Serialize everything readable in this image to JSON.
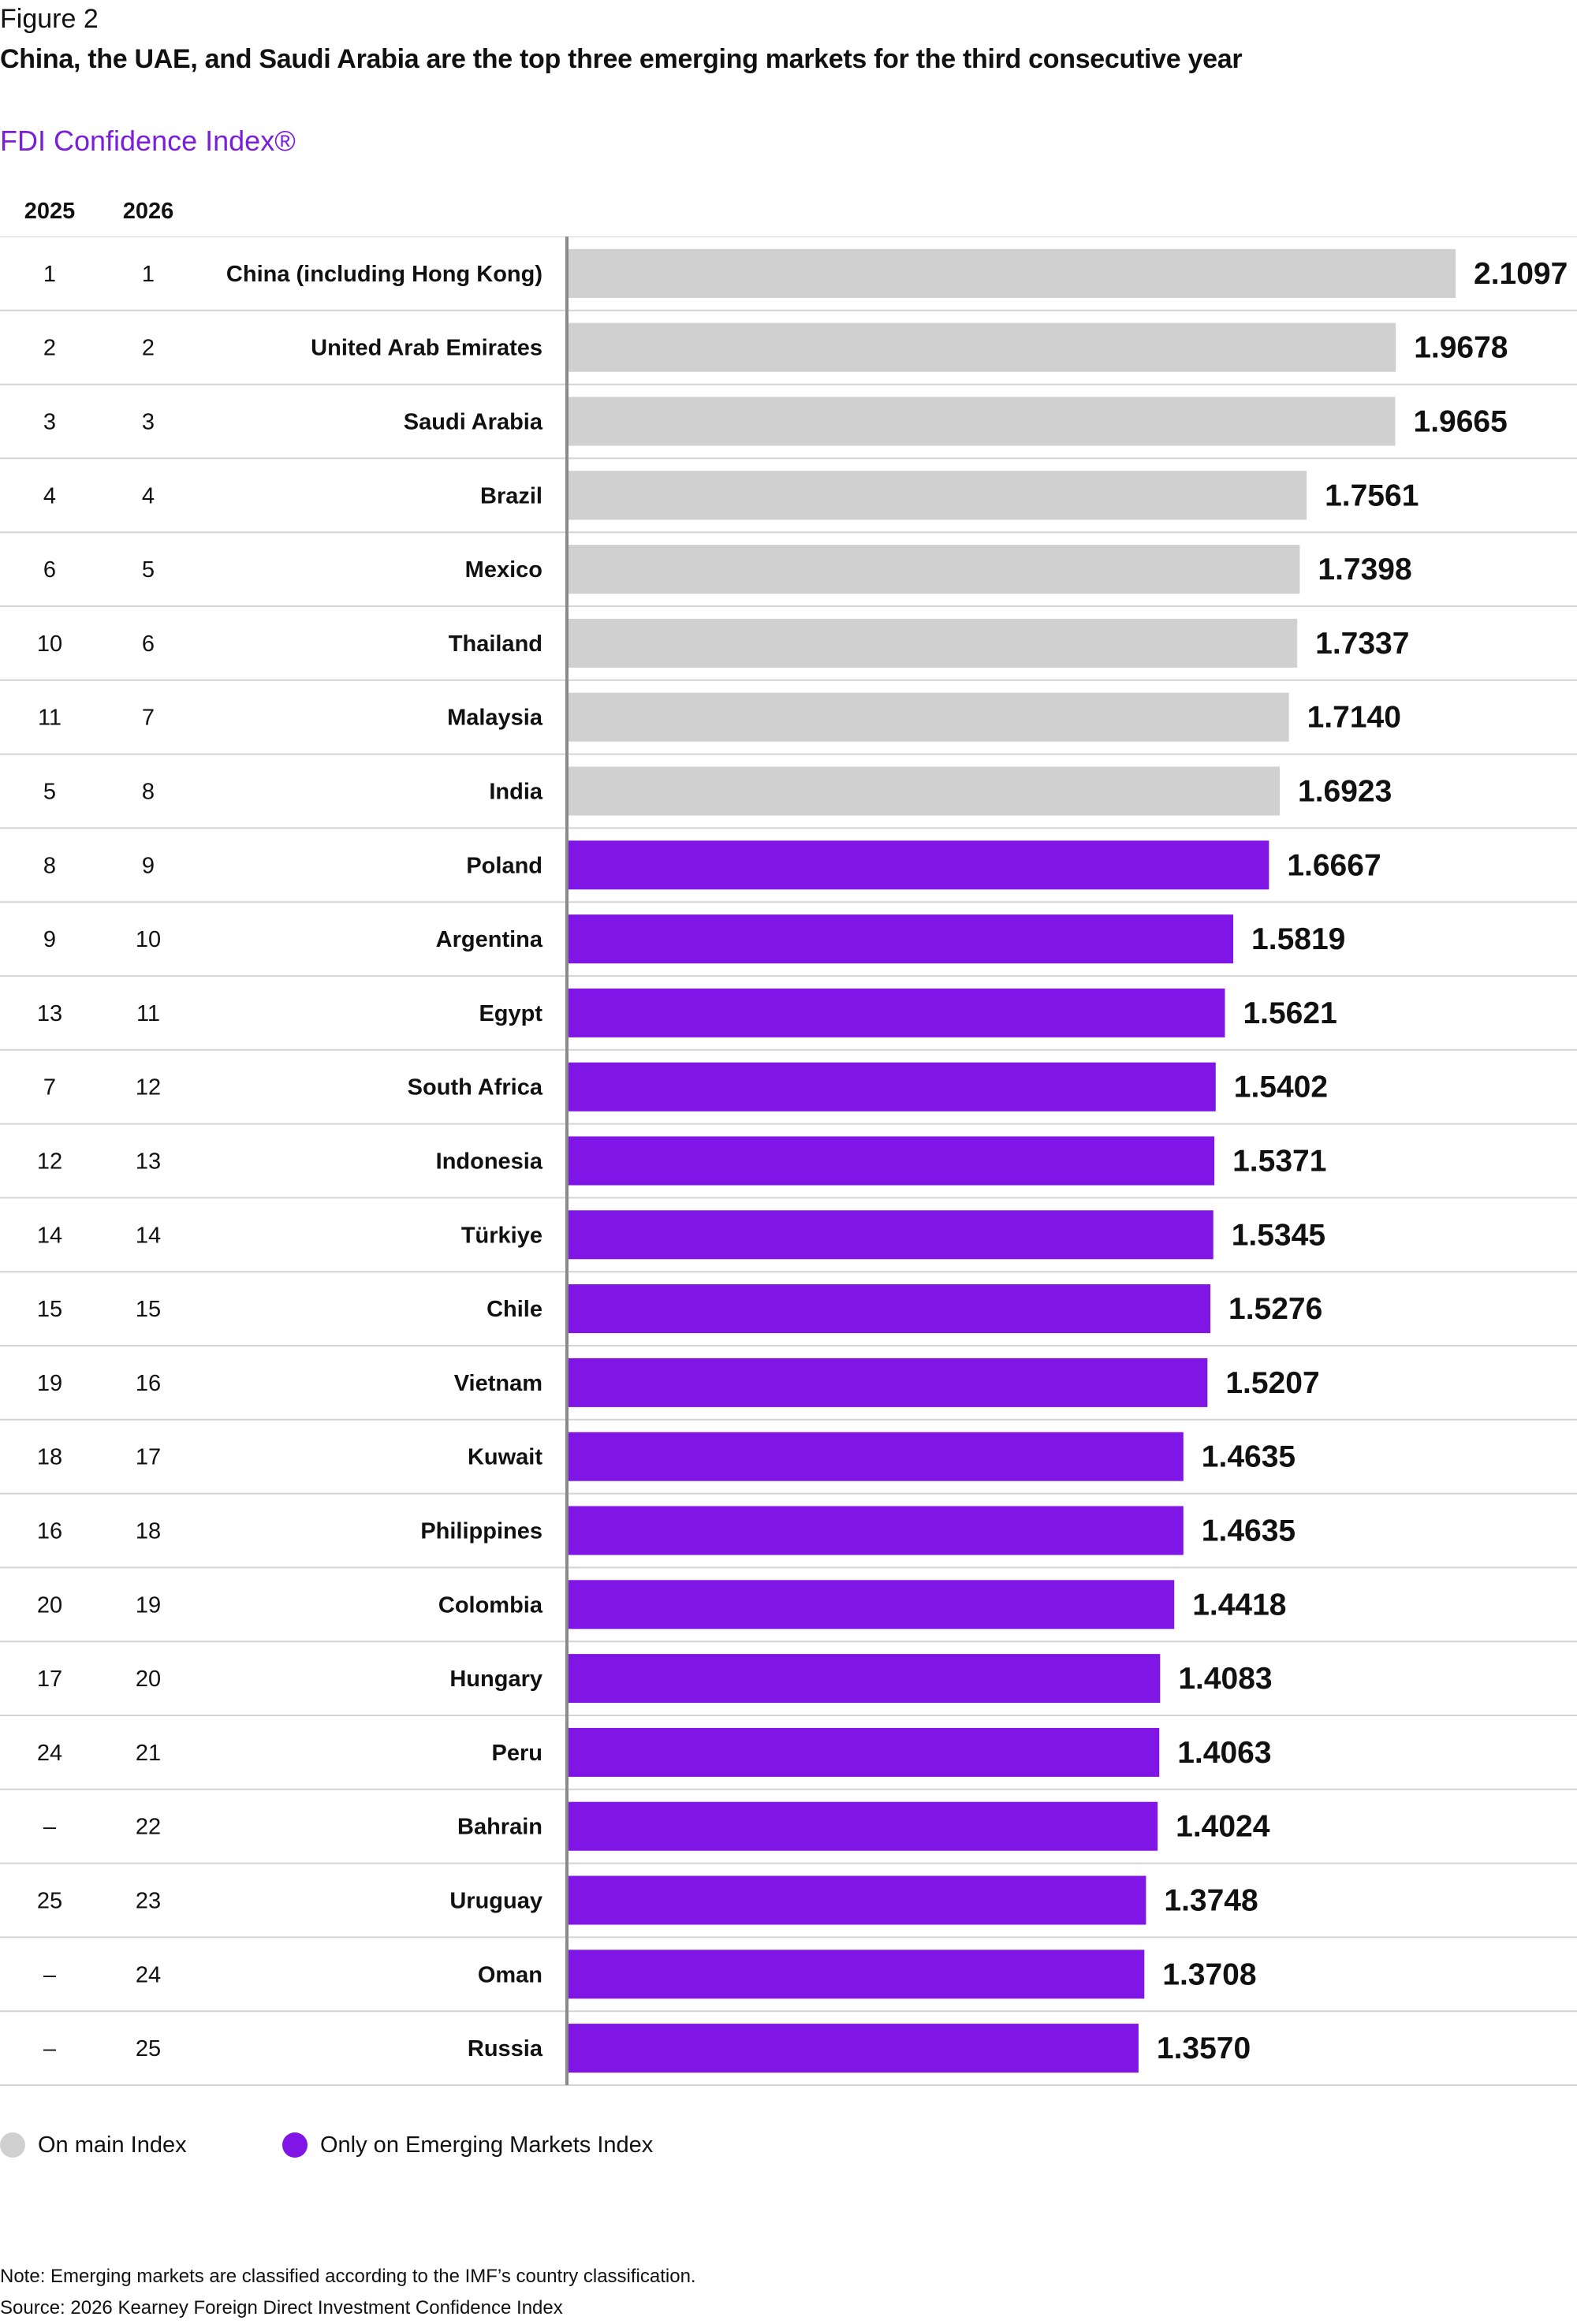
{
  "figure_label": "Figure 2",
  "title": "China, the UAE, and Saudi Arabia are the top three emerging markets for the third consecutive year",
  "subtitle": "FDI Confidence Index®",
  "columns": {
    "rank_2025": "2025",
    "rank_2026": "2026"
  },
  "colors": {
    "main_index": "#d0d0d0",
    "emerging_only": "#7f16e6",
    "subtitle": "#7b1fd8",
    "row_divider": "#d4d4d4",
    "axis": "#8a8a8a"
  },
  "legend": [
    {
      "label": "On main Index",
      "color": "#d0d0d0"
    },
    {
      "label": "Only on Emerging Markets Index",
      "color": "#7f16e6"
    }
  ],
  "notes": {
    "note": "Note: Emerging markets are classified according to the IMF’s country classification.",
    "source": "Source: 2026 Kearney Foreign Direct Investment Confidence Index"
  },
  "chart_data": {
    "type": "bar",
    "orientation": "horizontal",
    "title": "FDI Confidence Index®",
    "xlim": [
      0,
      2.1097
    ],
    "series_groups": [
      "On main Index",
      "Only on Emerging Markets Index"
    ],
    "rows": [
      {
        "rank_2025": "1",
        "rank_2026": "1",
        "country": "China (including Hong Kong)",
        "value": 2.1097,
        "label": "2.1097",
        "group": "On main Index"
      },
      {
        "rank_2025": "2",
        "rank_2026": "2",
        "country": "United Arab Emirates",
        "value": 1.9678,
        "label": "1.9678",
        "group": "On main Index"
      },
      {
        "rank_2025": "3",
        "rank_2026": "3",
        "country": "Saudi Arabia",
        "value": 1.9665,
        "label": "1.9665",
        "group": "On main Index"
      },
      {
        "rank_2025": "4",
        "rank_2026": "4",
        "country": "Brazil",
        "value": 1.7561,
        "label": "1.7561",
        "group": "On main Index"
      },
      {
        "rank_2025": "6",
        "rank_2026": "5",
        "country": "Mexico",
        "value": 1.7398,
        "label": "1.7398",
        "group": "On main Index"
      },
      {
        "rank_2025": "10",
        "rank_2026": "6",
        "country": "Thailand",
        "value": 1.7337,
        "label": "1.7337",
        "group": "On main Index"
      },
      {
        "rank_2025": "11",
        "rank_2026": "7",
        "country": "Malaysia",
        "value": 1.714,
        "label": "1.7140",
        "group": "On main Index"
      },
      {
        "rank_2025": "5",
        "rank_2026": "8",
        "country": "India",
        "value": 1.6923,
        "label": "1.6923",
        "group": "On main Index"
      },
      {
        "rank_2025": "8",
        "rank_2026": "9",
        "country": "Poland",
        "value": 1.6667,
        "label": "1.6667",
        "group": "Only on Emerging Markets Index"
      },
      {
        "rank_2025": "9",
        "rank_2026": "10",
        "country": "Argentina",
        "value": 1.5819,
        "label": "1.5819",
        "group": "Only on Emerging Markets Index"
      },
      {
        "rank_2025": "13",
        "rank_2026": "11",
        "country": "Egypt",
        "value": 1.5621,
        "label": "1.5621",
        "group": "Only on Emerging Markets Index"
      },
      {
        "rank_2025": "7",
        "rank_2026": "12",
        "country": "South Africa",
        "value": 1.5402,
        "label": "1.5402",
        "group": "Only on Emerging Markets Index"
      },
      {
        "rank_2025": "12",
        "rank_2026": "13",
        "country": "Indonesia",
        "value": 1.5371,
        "label": "1.5371",
        "group": "Only on Emerging Markets Index"
      },
      {
        "rank_2025": "14",
        "rank_2026": "14",
        "country": "Türkiye",
        "value": 1.5345,
        "label": "1.5345",
        "group": "Only on Emerging Markets Index"
      },
      {
        "rank_2025": "15",
        "rank_2026": "15",
        "country": "Chile",
        "value": 1.5276,
        "label": "1.5276",
        "group": "Only on Emerging Markets Index"
      },
      {
        "rank_2025": "19",
        "rank_2026": "16",
        "country": "Vietnam",
        "value": 1.5207,
        "label": "1.5207",
        "group": "Only on Emerging Markets Index"
      },
      {
        "rank_2025": "18",
        "rank_2026": "17",
        "country": "Kuwait",
        "value": 1.4635,
        "label": "1.4635",
        "group": "Only on Emerging Markets Index"
      },
      {
        "rank_2025": "16",
        "rank_2026": "18",
        "country": "Philippines",
        "value": 1.4635,
        "label": "1.4635",
        "group": "Only on Emerging Markets Index"
      },
      {
        "rank_2025": "20",
        "rank_2026": "19",
        "country": "Colombia",
        "value": 1.4418,
        "label": "1.4418",
        "group": "Only on Emerging Markets Index"
      },
      {
        "rank_2025": "17",
        "rank_2026": "20",
        "country": "Hungary",
        "value": 1.4083,
        "label": "1.4083",
        "group": "Only on Emerging Markets Index"
      },
      {
        "rank_2025": "24",
        "rank_2026": "21",
        "country": "Peru",
        "value": 1.4063,
        "label": "1.4063",
        "group": "Only on Emerging Markets Index"
      },
      {
        "rank_2025": "–",
        "rank_2026": "22",
        "country": "Bahrain",
        "value": 1.4024,
        "label": "1.4024",
        "group": "Only on Emerging Markets Index"
      },
      {
        "rank_2025": "25",
        "rank_2026": "23",
        "country": "Uruguay",
        "value": 1.3748,
        "label": "1.3748",
        "group": "Only on Emerging Markets Index"
      },
      {
        "rank_2025": "–",
        "rank_2026": "24",
        "country": "Oman",
        "value": 1.3708,
        "label": "1.3708",
        "group": "Only on Emerging Markets Index"
      },
      {
        "rank_2025": "–",
        "rank_2026": "25",
        "country": "Russia",
        "value": 1.357,
        "label": "1.3570",
        "group": "Only on Emerging Markets Index"
      }
    ]
  }
}
